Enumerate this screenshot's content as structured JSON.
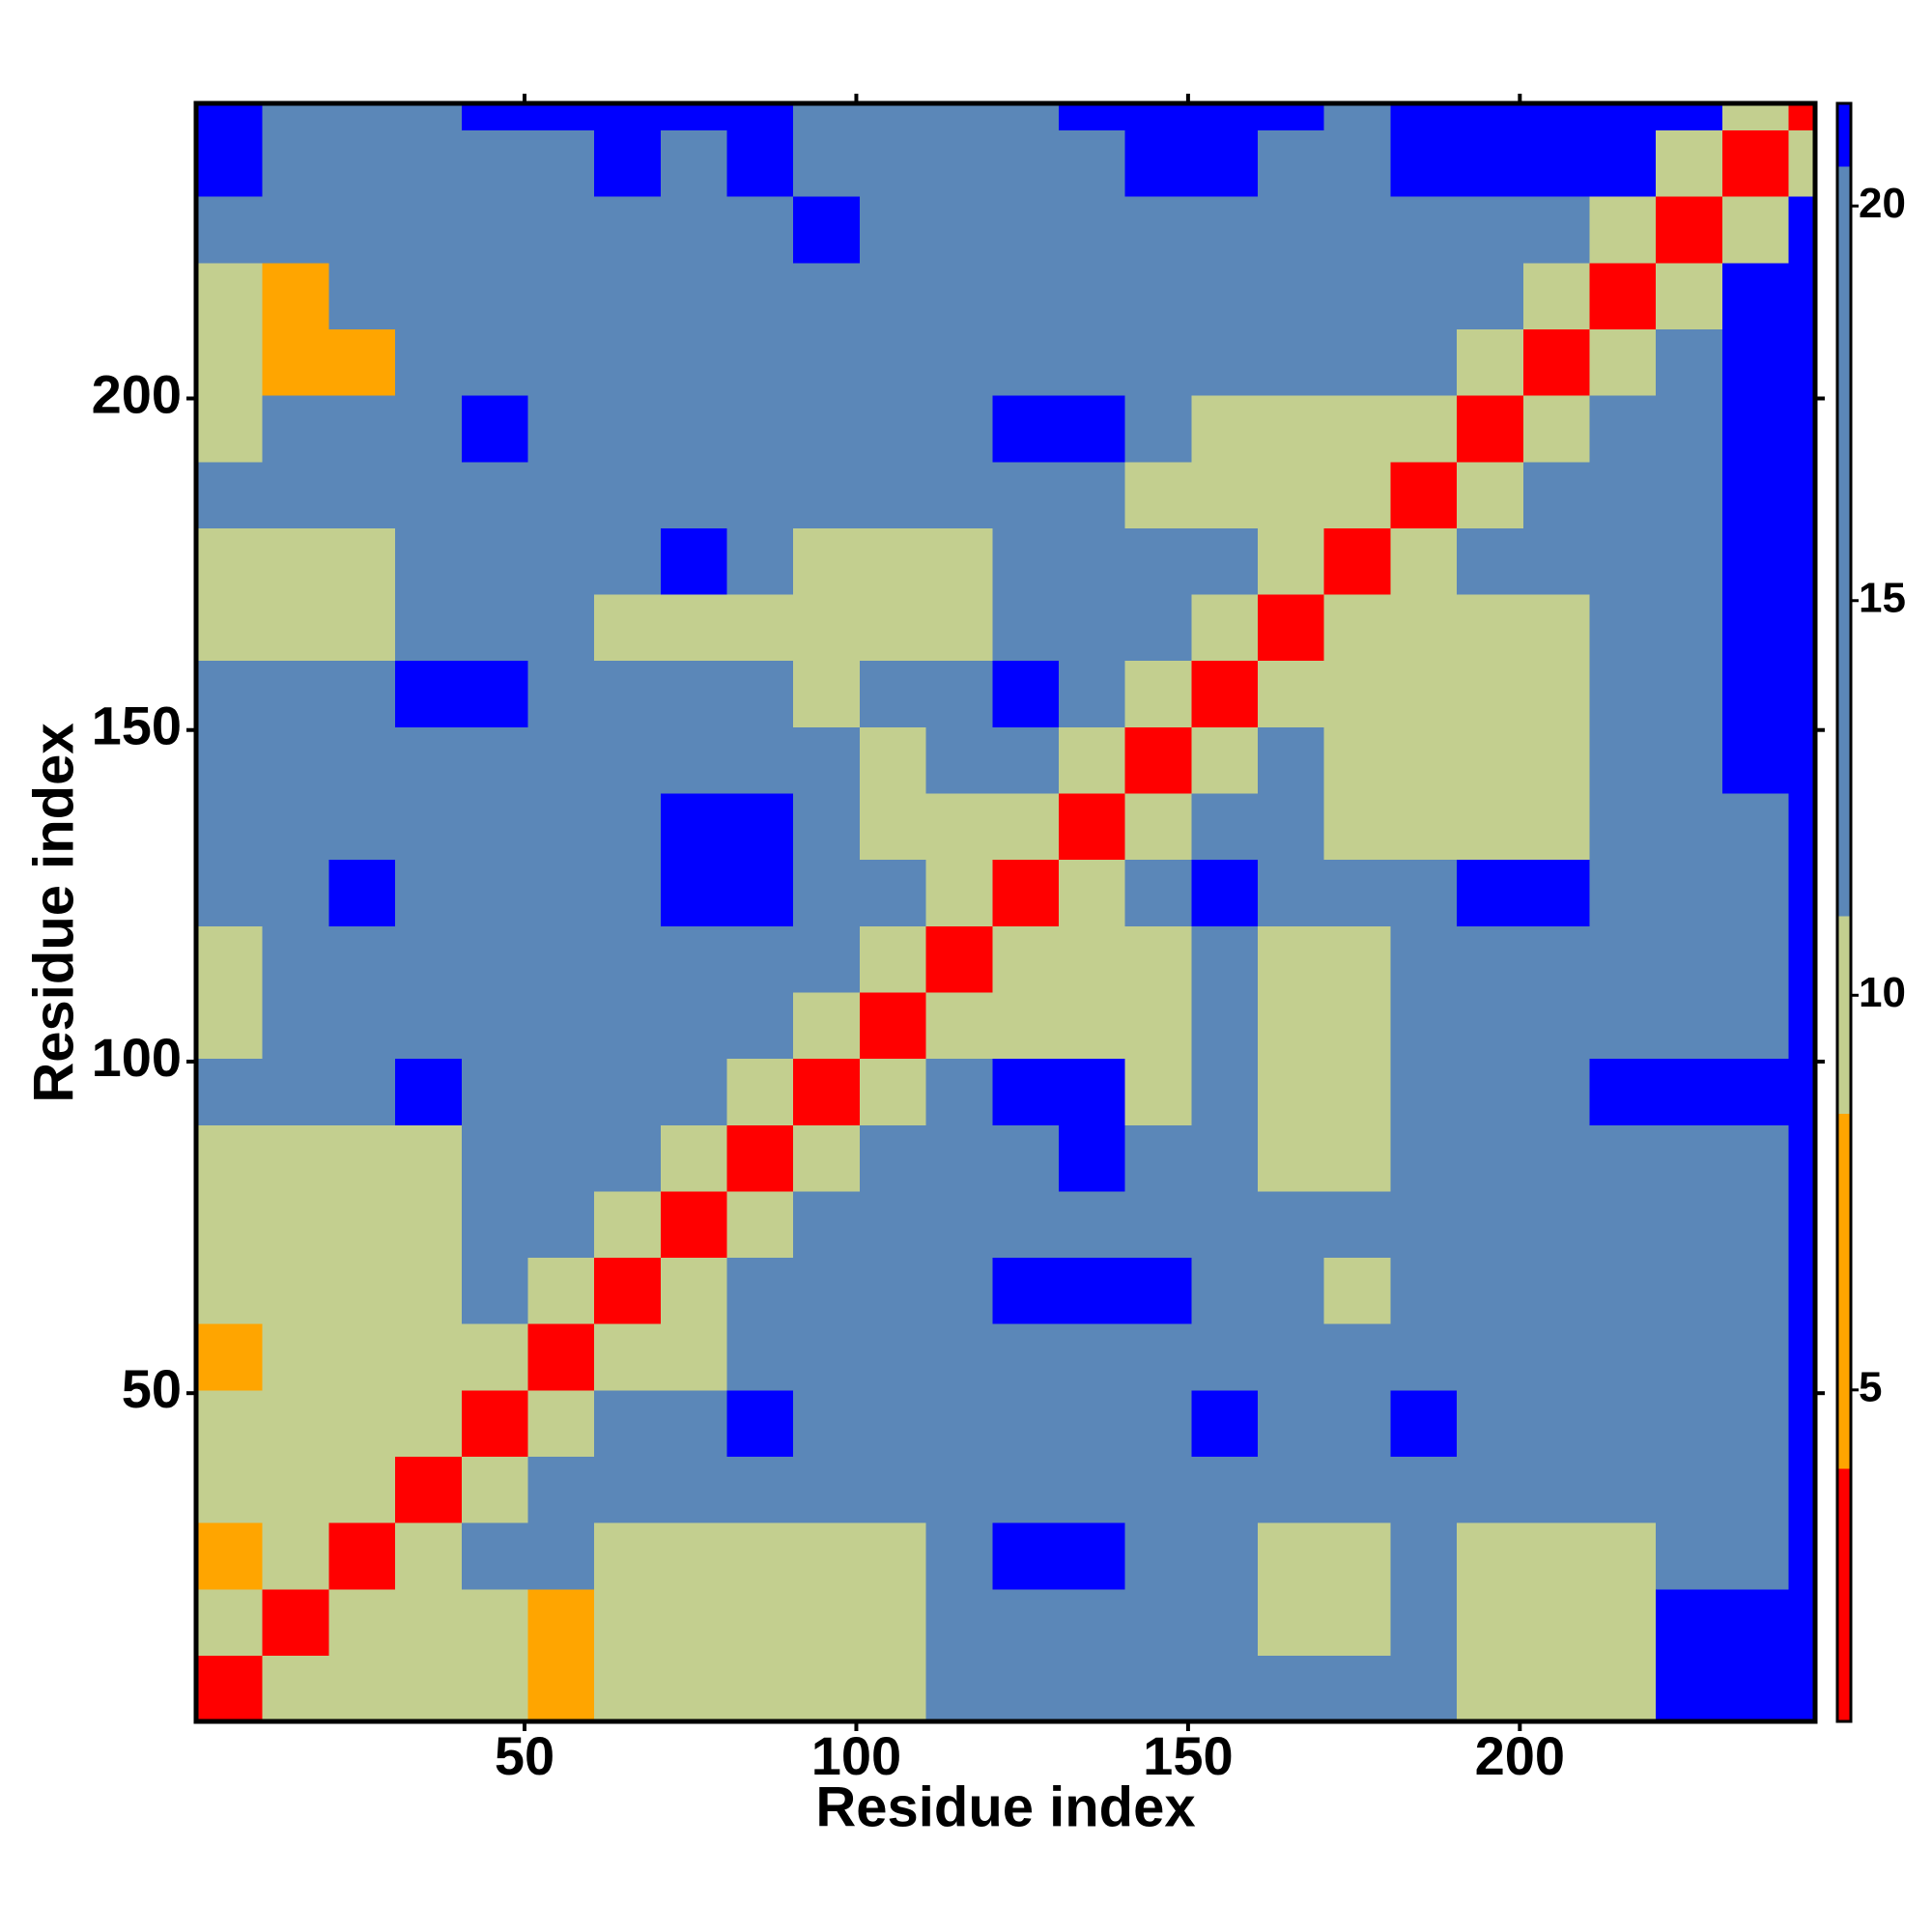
{
  "chart_data": {
    "type": "heatmap",
    "xlabel": "Residue index",
    "ylabel": "Residue index",
    "xlim": [
      0.5,
      244.5
    ],
    "ylim": [
      0.5,
      244.5
    ],
    "xticks": [
      50,
      100,
      150,
      200
    ],
    "yticks": [
      50,
      100,
      150,
      200
    ],
    "bins": [
      0.5,
      10.5,
      20.5,
      30.5,
      40.5,
      50.5,
      60.5,
      70.5,
      80.5,
      90.5,
      100.5,
      110.5,
      120.5,
      130.5,
      140.5,
      150.5,
      160.5,
      170.5,
      180.5,
      190.5,
      200.5,
      210.5,
      220.5,
      230.5,
      240.5,
      244.5
    ],
    "clim": [
      0.8,
      21.3
    ],
    "cticks": [
      5,
      10,
      15,
      20
    ],
    "color_levels": [
      {
        "max": 4,
        "color": "#ff0000"
      },
      {
        "max": 8.5,
        "color": "#ffa500"
      },
      {
        "max": 11,
        "color": "#c3cf8f"
      },
      {
        "max": 20.5,
        "color": "#5b87b8"
      },
      {
        "max": 21.3,
        "color": "#0000ff"
      }
    ],
    "values": [
      [
        3,
        9,
        10,
        10,
        10,
        8,
        10,
        10,
        10,
        10,
        10,
        15,
        15,
        15,
        15,
        15,
        15,
        15,
        15,
        9,
        9,
        9,
        21,
        21,
        21
      ],
      [
        9,
        3,
        9,
        10,
        10,
        8,
        10,
        10,
        10,
        10,
        10,
        15,
        15,
        15,
        15,
        15,
        9,
        9,
        15,
        9,
        9,
        9,
        21,
        21,
        21
      ],
      [
        8,
        9,
        3,
        9,
        15,
        15,
        10,
        10,
        10,
        10,
        10,
        15,
        21,
        21,
        15,
        15,
        9,
        9,
        15,
        9,
        9,
        9,
        15,
        15,
        21
      ],
      [
        10,
        10,
        9,
        3,
        9,
        15,
        15,
        15,
        15,
        15,
        15,
        15,
        15,
        15,
        15,
        15,
        15,
        15,
        15,
        15,
        15,
        15,
        15,
        15,
        21
      ],
      [
        10,
        10,
        10,
        9,
        3,
        9,
        15,
        15,
        21,
        15,
        15,
        15,
        15,
        15,
        15,
        21,
        15,
        15,
        21,
        15,
        15,
        15,
        15,
        15,
        21
      ],
      [
        8,
        10,
        10,
        9,
        9,
        3,
        9,
        10,
        15,
        15,
        15,
        15,
        15,
        15,
        15,
        15,
        15,
        15,
        15,
        15,
        15,
        15,
        15,
        15,
        21
      ],
      [
        10,
        10,
        10,
        10,
        15,
        9,
        3,
        9,
        15,
        15,
        15,
        15,
        21,
        21,
        21,
        15,
        15,
        9,
        15,
        15,
        15,
        15,
        15,
        15,
        21
      ],
      [
        10,
        10,
        10,
        10,
        15,
        15,
        9,
        3,
        9,
        15,
        15,
        15,
        15,
        15,
        15,
        15,
        15,
        15,
        15,
        15,
        15,
        15,
        15,
        15,
        21
      ],
      [
        10,
        10,
        10,
        10,
        15,
        15,
        15,
        9,
        3,
        9,
        15,
        15,
        15,
        21,
        15,
        15,
        9,
        9,
        15,
        15,
        15,
        15,
        15,
        15,
        21
      ],
      [
        15,
        15,
        15,
        21,
        15,
        15,
        15,
        15,
        9,
        3,
        9,
        15,
        21,
        21,
        9,
        15,
        9,
        9,
        15,
        15,
        15,
        21,
        21,
        21,
        21
      ],
      [
        9,
        15,
        15,
        15,
        15,
        15,
        15,
        15,
        15,
        9,
        3,
        9,
        9,
        9,
        9,
        15,
        9,
        9,
        15,
        15,
        15,
        15,
        15,
        15,
        21
      ],
      [
        9,
        15,
        15,
        15,
        15,
        15,
        15,
        15,
        15,
        15,
        9,
        3,
        9,
        9,
        9,
        15,
        9,
        9,
        15,
        15,
        15,
        15,
        15,
        15,
        21
      ],
      [
        15,
        15,
        21,
        15,
        15,
        15,
        15,
        21,
        21,
        15,
        15,
        9,
        3,
        9,
        15,
        21,
        15,
        15,
        15,
        21,
        21,
        15,
        15,
        15,
        21
      ],
      [
        15,
        15,
        15,
        15,
        15,
        15,
        15,
        21,
        21,
        15,
        9,
        9,
        9,
        3,
        9,
        15,
        15,
        9,
        9,
        9,
        9,
        15,
        15,
        15,
        21
      ],
      [
        15,
        15,
        15,
        15,
        15,
        15,
        15,
        15,
        15,
        15,
        9,
        15,
        15,
        9,
        3,
        9,
        15,
        9,
        9,
        9,
        9,
        15,
        15,
        21,
        21
      ],
      [
        15,
        15,
        15,
        21,
        21,
        15,
        15,
        15,
        15,
        9,
        15,
        15,
        21,
        15,
        9,
        3,
        9,
        9,
        9,
        9,
        9,
        15,
        15,
        21,
        21
      ],
      [
        9,
        9,
        9,
        15,
        15,
        15,
        9,
        9,
        9,
        9,
        9,
        9,
        15,
        15,
        15,
        9,
        3,
        9,
        9,
        9,
        9,
        15,
        15,
        21,
        21
      ],
      [
        9,
        9,
        9,
        15,
        15,
        15,
        15,
        21,
        15,
        9,
        9,
        9,
        15,
        15,
        15,
        15,
        9,
        3,
        9,
        15,
        15,
        15,
        15,
        21,
        21
      ],
      [
        15,
        15,
        15,
        15,
        15,
        15,
        15,
        15,
        15,
        15,
        15,
        15,
        15,
        15,
        9,
        9,
        9,
        9,
        3,
        9,
        15,
        15,
        15,
        21,
        21
      ],
      [
        10,
        15,
        15,
        15,
        21,
        15,
        15,
        15,
        15,
        15,
        15,
        15,
        21,
        21,
        15,
        9,
        9,
        9,
        9,
        3,
        9,
        15,
        15,
        21,
        21
      ],
      [
        10,
        8,
        8,
        15,
        15,
        15,
        15,
        15,
        15,
        15,
        15,
        15,
        15,
        15,
        15,
        15,
        15,
        15,
        15,
        9,
        3,
        9,
        15,
        21,
        21
      ],
      [
        10,
        8,
        15,
        15,
        15,
        15,
        15,
        15,
        15,
        15,
        15,
        15,
        15,
        15,
        15,
        15,
        15,
        15,
        15,
        15,
        9,
        3,
        9,
        21,
        21
      ],
      [
        15,
        15,
        15,
        15,
        15,
        15,
        15,
        15,
        15,
        21,
        15,
        15,
        15,
        15,
        15,
        15,
        15,
        15,
        15,
        15,
        15,
        9,
        3,
        9,
        21
      ],
      [
        21,
        15,
        15,
        15,
        15,
        15,
        21,
        15,
        21,
        15,
        15,
        15,
        15,
        15,
        21,
        21,
        15,
        15,
        21,
        21,
        21,
        21,
        9,
        3,
        9
      ],
      [
        21,
        15,
        15,
        15,
        21,
        21,
        21,
        21,
        21,
        15,
        15,
        15,
        15,
        21,
        21,
        21,
        21,
        15,
        21,
        21,
        21,
        21,
        21,
        9,
        3
      ]
    ]
  }
}
